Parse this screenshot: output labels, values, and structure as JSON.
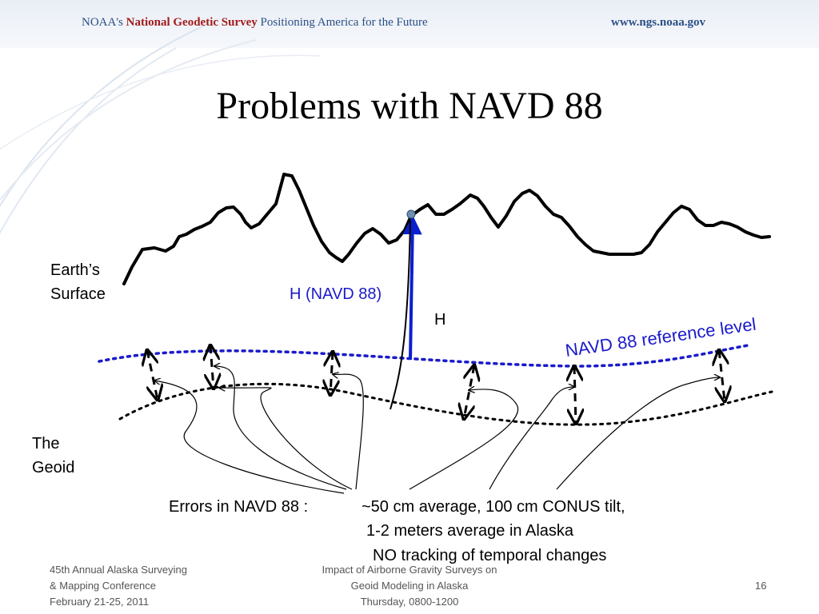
{
  "header": {
    "org": "NOAA's",
    "agency": "National Geodetic Survey",
    "tagline": "Positioning America for the Future",
    "url": "www.ngs.noaa.gov"
  },
  "slide": {
    "title": "Problems with NAVD 88",
    "number": "16"
  },
  "diagram": {
    "earth_surface_label_line1": "Earth’s",
    "earth_surface_label_line2": "Surface",
    "geoid_label_line1": "The",
    "geoid_label_line2": "Geoid",
    "h_navd_label": "H (NAVD 88)",
    "h_label": "H",
    "reference_level_label": "NAVD 88 reference level",
    "errors_heading": "Errors in NAVD 88 :",
    "errors_line1": "~50 cm average, 100 cm CONUS tilt,",
    "errors_line2": "1-2 meters average in Alaska",
    "errors_line3": "NO tracking of temporal changes",
    "colors": {
      "reference_blue": "#1a1acc",
      "navd_arrow_blue": "#0b1fcf",
      "black": "#000000"
    }
  },
  "footer": {
    "left_line1": "45th Annual Alaska Surveying",
    "left_line2": "& Mapping Conference",
    "left_line3": "February 21-25, 2011",
    "center_line1": "Impact of Airborne Gravity Surveys on",
    "center_line2": "Geoid Modeling in Alaska",
    "center_line3": "Thursday, 0800-1200"
  }
}
